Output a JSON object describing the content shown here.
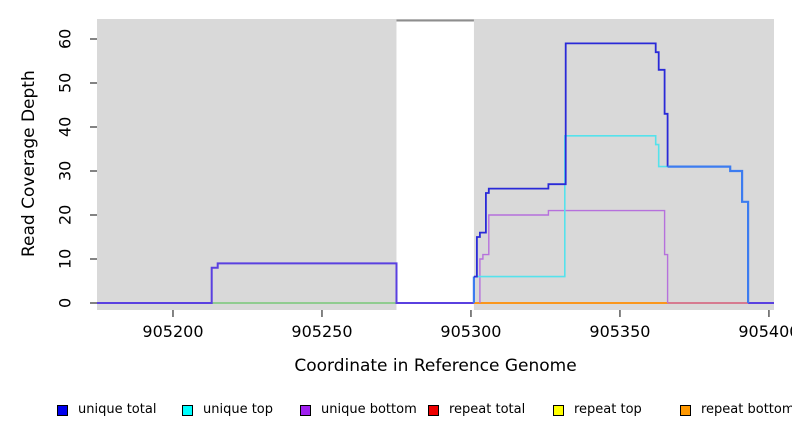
{
  "chart_data": {
    "type": "line",
    "subtype": "step-coverage-plot",
    "title": "",
    "xlabel": "Coordinate in Reference Genome",
    "ylabel": "Read Coverage Depth",
    "xlim": [
      905174.5,
      905401.7
    ],
    "ylim": [
      0,
      65
    ],
    "x_ticks": [
      905200,
      905250,
      905300,
      905350,
      905400
    ],
    "x_tick_labels": [
      "905200",
      "905250",
      "905300",
      "905350",
      "905400"
    ],
    "y_ticks": [
      0,
      10,
      20,
      30,
      40,
      50,
      60
    ],
    "y_tick_labels": [
      "0",
      "10",
      "20",
      "30",
      "40",
      "50",
      "60"
    ],
    "grid": false,
    "legend_position": "bottom",
    "panel_background": "#D9D9D9",
    "masked_region": {
      "x_start": 905275,
      "x_end": 905301,
      "fill": "#FFFFFF",
      "top_edge_color": "#8E8E8E"
    },
    "series": [
      {
        "name": "unique total",
        "color": "#0000EE",
        "points": [
          [
            905174.5,
            0
          ],
          [
            905213,
            0
          ],
          [
            905213,
            8
          ],
          [
            905215,
            8
          ],
          [
            905215,
            9
          ],
          [
            905275,
            9
          ],
          [
            905275,
            0
          ],
          [
            905301,
            0
          ],
          [
            905301,
            6
          ],
          [
            905302,
            6
          ],
          [
            905302,
            15
          ],
          [
            905303,
            15
          ],
          [
            905303,
            16
          ],
          [
            905305,
            16
          ],
          [
            905305,
            25
          ],
          [
            905306,
            25
          ],
          [
            905306,
            26
          ],
          [
            905326,
            26
          ],
          [
            905326,
            27
          ],
          [
            905332,
            27
          ],
          [
            905332,
            59
          ],
          [
            905362,
            59
          ],
          [
            905362,
            57
          ],
          [
            905363,
            57
          ],
          [
            905363,
            53
          ],
          [
            905365,
            53
          ],
          [
            905365,
            43
          ],
          [
            905366,
            43
          ],
          [
            905366,
            31
          ],
          [
            905387,
            31
          ],
          [
            905387,
            30
          ],
          [
            905391,
            30
          ],
          [
            905391,
            23
          ],
          [
            905393,
            23
          ],
          [
            905393,
            0
          ],
          [
            905401.7,
            0
          ]
        ]
      },
      {
        "name": "unique top",
        "color": "#00FFFF",
        "points": [
          [
            905174.5,
            0
          ],
          [
            905301,
            0
          ],
          [
            905301,
            6
          ],
          [
            905332,
            6
          ],
          [
            905332,
            38
          ],
          [
            905362,
            38
          ],
          [
            905362,
            36
          ],
          [
            905363,
            36
          ],
          [
            905363,
            31
          ],
          [
            905387,
            31
          ],
          [
            905387,
            30
          ],
          [
            905391,
            30
          ],
          [
            905391,
            23
          ],
          [
            905393,
            23
          ],
          [
            905393,
            0
          ],
          [
            905401.7,
            0
          ]
        ]
      },
      {
        "name": "unique bottom",
        "color": "#A020F0",
        "points": [
          [
            905174.5,
            0
          ],
          [
            905213,
            0
          ],
          [
            905213,
            8
          ],
          [
            905215,
            8
          ],
          [
            905215,
            9
          ],
          [
            905275,
            9
          ],
          [
            905275,
            0
          ],
          [
            905303,
            0
          ],
          [
            905303,
            10
          ],
          [
            905304,
            10
          ],
          [
            905304,
            11
          ],
          [
            905306,
            11
          ],
          [
            905306,
            20
          ],
          [
            905326,
            20
          ],
          [
            905326,
            21
          ],
          [
            905365,
            21
          ],
          [
            905365,
            11
          ],
          [
            905366,
            11
          ],
          [
            905366,
            0
          ],
          [
            905401.7,
            0
          ]
        ]
      },
      {
        "name": "repeat total",
        "color": "#EE0000",
        "points": [
          [
            905174.5,
            0
          ],
          [
            905401.7,
            0
          ]
        ]
      },
      {
        "name": "repeat top",
        "color": "#FFFF00",
        "points": [
          [
            905174.5,
            0
          ],
          [
            905401.7,
            0
          ]
        ]
      },
      {
        "name": "repeat bottom",
        "color": "#FF9800",
        "points": [
          [
            905174.5,
            0
          ],
          [
            905401.7,
            0
          ]
        ]
      }
    ],
    "render_segments": [
      {
        "id": "zero-line-mid-green",
        "color": "#79C879",
        "width": 1.6,
        "points": [
          [
            905213,
            0
          ],
          [
            905275,
            0
          ]
        ]
      },
      {
        "id": "zero-line-right-orange",
        "color": "#FF8C00",
        "width": 1.8,
        "points": [
          [
            905301,
            0
          ],
          [
            905366,
            0
          ]
        ]
      },
      {
        "id": "zero-line-right-pink",
        "color": "#D65A78",
        "width": 1.6,
        "points": [
          [
            905366,
            0
          ],
          [
            905393,
            0
          ]
        ]
      },
      {
        "id": "unique-bottom-purple",
        "color": "#B671DC",
        "width": 1.4,
        "points": [
          [
            905303,
            0
          ],
          [
            905303,
            10
          ],
          [
            905304,
            10
          ],
          [
            905304,
            11
          ],
          [
            905306,
            11
          ],
          [
            905306,
            20
          ],
          [
            905326,
            20
          ],
          [
            905326,
            21
          ],
          [
            905365,
            21
          ],
          [
            905365,
            11
          ],
          [
            905366,
            11
          ],
          [
            905366,
            0
          ]
        ]
      },
      {
        "id": "unique-top-cyan",
        "color": "#55E2EC",
        "width": 1.6,
        "points": [
          [
            905301,
            6
          ],
          [
            905331.5,
            6
          ],
          [
            905331.5,
            38
          ],
          [
            905362,
            38
          ],
          [
            905362,
            36
          ],
          [
            905363,
            36
          ],
          [
            905363,
            31
          ],
          [
            905366,
            31
          ]
        ]
      },
      {
        "id": "left-plateau-violet",
        "color": "#5A40E0",
        "width": 2,
        "points": [
          [
            905174.5,
            0
          ],
          [
            905213,
            0
          ],
          [
            905213,
            8
          ],
          [
            905215,
            8
          ],
          [
            905215,
            9
          ],
          [
            905275,
            9
          ],
          [
            905275,
            0
          ],
          [
            905301,
            0
          ]
        ]
      },
      {
        "id": "right-end-violet",
        "color": "#5A40E0",
        "width": 2,
        "points": [
          [
            905393,
            0
          ],
          [
            905401.7,
            0
          ]
        ]
      },
      {
        "id": "rise-bright-blue",
        "color": "#3C7CF0",
        "width": 2.2,
        "points": [
          [
            905301,
            0
          ],
          [
            905301,
            6
          ]
        ]
      },
      {
        "id": "unique-total-dark-blue",
        "color": "#2A2AD8",
        "width": 1.8,
        "points": [
          [
            905301,
            6
          ],
          [
            905302,
            6
          ],
          [
            905302,
            15
          ],
          [
            905303,
            15
          ],
          [
            905303,
            16
          ],
          [
            905305,
            16
          ],
          [
            905305,
            25
          ],
          [
            905306,
            25
          ],
          [
            905306,
            26
          ],
          [
            905326,
            26
          ],
          [
            905326,
            27
          ],
          [
            905331.8,
            27
          ],
          [
            905331.8,
            59
          ],
          [
            905362,
            59
          ],
          [
            905362,
            57
          ],
          [
            905363,
            57
          ],
          [
            905363,
            53
          ],
          [
            905365,
            53
          ],
          [
            905365,
            43
          ],
          [
            905366,
            43
          ],
          [
            905366,
            31
          ]
        ]
      },
      {
        "id": "tail-bright-blue",
        "color": "#3C7CF0",
        "width": 2.2,
        "points": [
          [
            905366,
            31
          ],
          [
            905387,
            31
          ],
          [
            905387,
            30
          ],
          [
            905391,
            30
          ],
          [
            905391,
            23
          ],
          [
            905393,
            23
          ],
          [
            905393,
            0
          ]
        ]
      }
    ]
  },
  "legend": {
    "items": [
      {
        "label": "unique total",
        "color": "#0000EE"
      },
      {
        "label": "unique top",
        "color": "#00FFFF"
      },
      {
        "label": "unique bottom",
        "color": "#A020F0"
      },
      {
        "label": "repeat total",
        "color": "#EE0000"
      },
      {
        "label": "repeat top",
        "color": "#FFFF00"
      },
      {
        "label": "repeat bottom",
        "color": "#FF9800"
      }
    ]
  },
  "colors": {
    "panel_bg": "#D9D9D9",
    "page_bg": "#FFFFFF",
    "tick": "#404040",
    "text": "#000000"
  }
}
